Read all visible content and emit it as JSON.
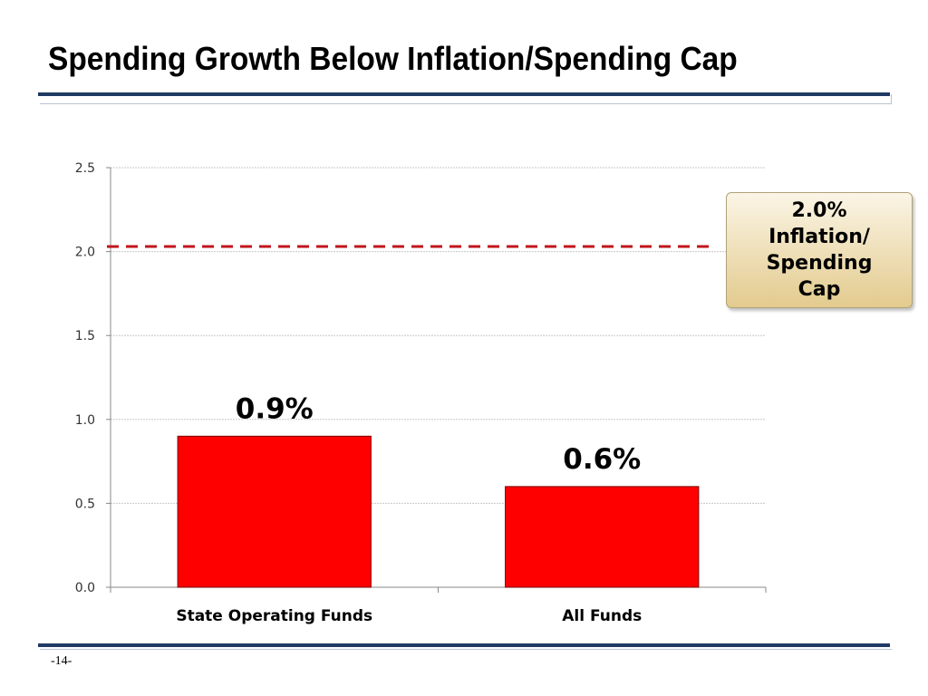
{
  "slide": {
    "title": "Spending Growth Below Inflation/Spending Cap",
    "page_number": "-14-"
  },
  "callout": {
    "text": "2.0% Inflation/ Spending Cap"
  },
  "colors": {
    "bar": "#ff0000",
    "bar_outline": "#7a0000",
    "reference_line": "#c0151b",
    "rule": "#1f3a63"
  },
  "chart_data": {
    "type": "bar",
    "categories": [
      "State Operating Funds",
      "All Funds"
    ],
    "values": [
      0.9,
      0.6
    ],
    "data_labels": [
      "0.9%",
      "0.6%"
    ],
    "y_ticks": [
      "0.0",
      "0.5",
      "1.0",
      "1.5",
      "2.0",
      "2.5"
    ],
    "ylim": [
      0,
      2.5
    ],
    "reference_line": {
      "value": 2.03,
      "style": "dashed"
    },
    "title": "",
    "xlabel": "",
    "ylabel": "",
    "grid": true,
    "legend": "none"
  }
}
